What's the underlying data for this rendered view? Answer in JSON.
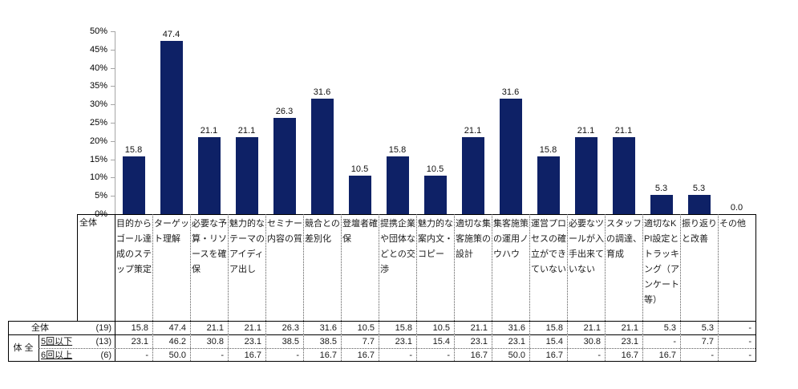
{
  "chart_data": {
    "type": "bar",
    "title": "",
    "xlabel": "",
    "ylabel": "",
    "ylim": [
      0,
      50
    ],
    "grid": false,
    "legend": "none",
    "bar_color": "#0e2166",
    "ytick_labels": [
      "0%",
      "5%",
      "10%",
      "15%",
      "20%",
      "25%",
      "30%",
      "35%",
      "40%",
      "45%",
      "50%"
    ],
    "categories": [
      "目的からゴール達成のステップ策定",
      "ターゲット理解",
      "必要な予算・リソースを確保",
      "魅力的なテーマのアイディア出し",
      "セミナー内容の質",
      "競合との差別化",
      "登壇者確保",
      "提携企業や団体などとの交渉",
      "魅力的な案内文・コピー",
      "適切な集客施策の設計",
      "集客施策の運用ノウハウ",
      "運営プロセスの確立ができていない",
      "必要なツールが入手出来ていない",
      "スタッフの調達、育成",
      "適切なKPI設定とトラッキング（アンケート等）",
      "振り返りと改善",
      "その他"
    ],
    "series": [
      {
        "name": "全体",
        "count": "(19)",
        "values": [
          15.8,
          47.4,
          21.1,
          21.1,
          26.3,
          31.6,
          10.5,
          15.8,
          10.5,
          21.1,
          31.6,
          15.8,
          21.1,
          21.1,
          5.3,
          5.3,
          0.0
        ]
      },
      {
        "name": "5回以下",
        "count": "(13)",
        "values": [
          23.1,
          46.2,
          30.8,
          23.1,
          38.5,
          38.5,
          7.7,
          23.1,
          15.4,
          23.1,
          23.1,
          15.4,
          30.8,
          23.1,
          null,
          7.7,
          null
        ]
      },
      {
        "name": "6回以上",
        "count": "(6)",
        "values": [
          null,
          50.0,
          null,
          16.7,
          null,
          16.7,
          16.7,
          null,
          null,
          16.7,
          50.0,
          16.7,
          null,
          16.7,
          16.7,
          null,
          null
        ]
      }
    ],
    "plotted_series": "全体",
    "bar_labels": [
      "15.8",
      "47.4",
      "21.1",
      "21.1",
      "26.3",
      "31.6",
      "10.5",
      "15.8",
      "10.5",
      "21.1",
      "31.6",
      "15.8",
      "21.1",
      "21.1",
      "5.3",
      "5.3",
      "0.0"
    ],
    "table_cells": [
      [
        "15.8",
        "47.4",
        "21.1",
        "21.1",
        "26.3",
        "31.6",
        "10.5",
        "15.8",
        "10.5",
        "21.1",
        "31.6",
        "15.8",
        "21.1",
        "21.1",
        "5.3",
        "5.3",
        "-"
      ],
      [
        "23.1",
        "46.2",
        "30.8",
        "23.1",
        "38.5",
        "38.5",
        "7.7",
        "23.1",
        "15.4",
        "23.1",
        "23.1",
        "15.4",
        "30.8",
        "23.1",
        "-",
        "7.7",
        "-"
      ],
      [
        "-",
        "50.0",
        "-",
        "16.7",
        "-",
        "16.7",
        "16.7",
        "-",
        "-",
        "16.7",
        "50.0",
        "16.7",
        "-",
        "16.7",
        "16.7",
        "-",
        "-"
      ]
    ]
  },
  "table": {
    "corner_label": "全体",
    "group_label": "体 全",
    "rows": [
      {
        "label": "全体",
        "count": "(19)"
      },
      {
        "label": "5回以下",
        "count": "(13)"
      },
      {
        "label": "6回以上",
        "count": "(6)"
      }
    ]
  }
}
